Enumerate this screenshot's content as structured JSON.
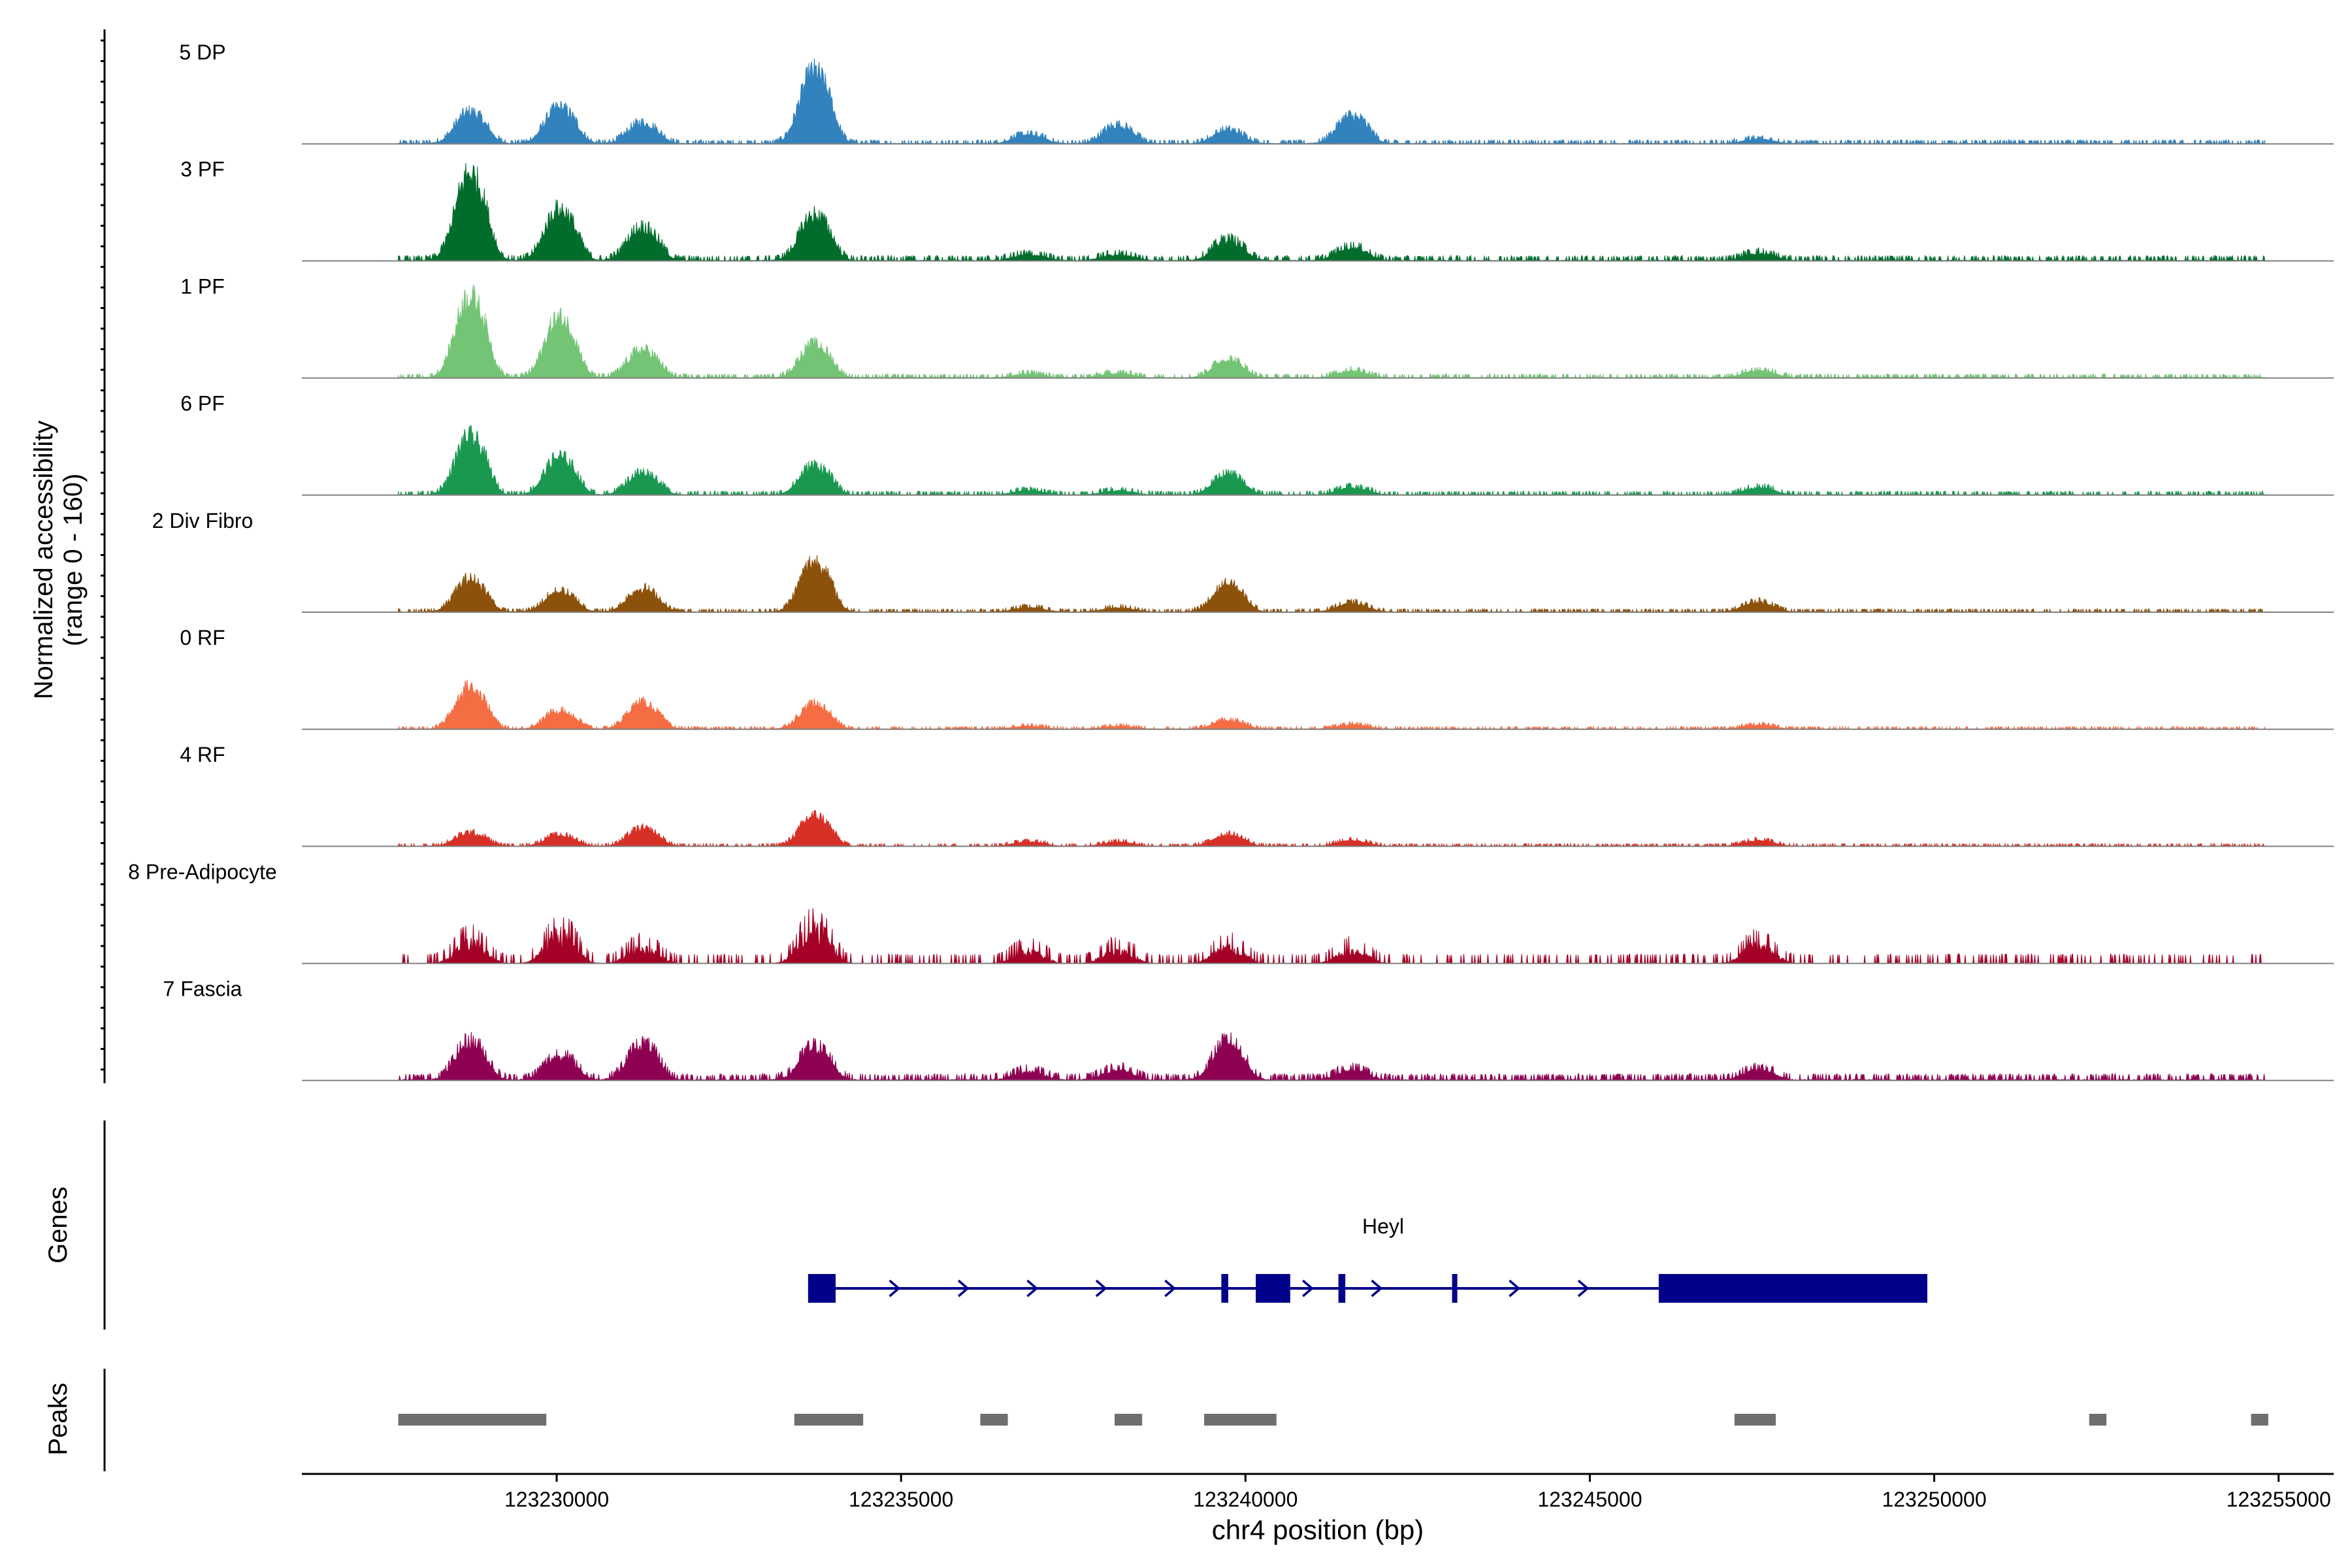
{
  "chart_data": {
    "type": "area",
    "title": "",
    "ylabel_line1": "Normalized accessibility",
    "ylabel_line2": "(range 0 - 160)",
    "ylim": [
      0,
      160
    ],
    "xlabel": "chr4 position (bp)",
    "xlim": [
      123226300,
      123255800
    ],
    "x_ticks": [
      123230000,
      123235000,
      123240000,
      123245000,
      123250000,
      123255000
    ],
    "x_tick_labels": [
      "123230000",
      "123235000",
      "123240000",
      "123245000",
      "123250000",
      "123255000"
    ],
    "signal_start": 123227700,
    "signal_end": 123254800,
    "peak_positions": [
      123228700,
      123230000,
      123231200,
      123233700,
      123236800,
      123238100,
      123239700,
      123241500,
      123247400
    ],
    "tracks": [
      {
        "name": "5 DP",
        "color": "#3182bd",
        "peaks": [
          43,
          49,
          28,
          100,
          12,
          25,
          18,
          38,
          6
        ],
        "noise": 6,
        "jagged": false
      },
      {
        "name": "3 PF",
        "color": "#006d2c",
        "peaks": [
          120,
          70,
          45,
          62,
          8,
          8,
          28,
          18,
          10
        ],
        "noise": 8,
        "jagged": false
      },
      {
        "name": "1 PF",
        "color": "#74c476",
        "peaks": [
          112,
          82,
          38,
          45,
          5,
          6,
          25,
          10,
          10
        ],
        "noise": 6,
        "jagged": false
      },
      {
        "name": "6 PF",
        "color": "#1a9850",
        "peaks": [
          80,
          52,
          30,
          40,
          6,
          6,
          28,
          10,
          10
        ],
        "noise": 6,
        "jagged": false
      },
      {
        "name": "2 Div Fibro",
        "color": "#8c510a",
        "peaks": [
          45,
          28,
          32,
          70,
          6,
          6,
          38,
          12,
          14
        ],
        "noise": 5,
        "jagged": false
      },
      {
        "name": "0 RF",
        "color": "#f46d43",
        "peaks": [
          58,
          25,
          36,
          34,
          4,
          4,
          12,
          6,
          6
        ],
        "noise": 4,
        "jagged": false
      },
      {
        "name": "4 RF",
        "color": "#d73027",
        "peaks": [
          18,
          15,
          24,
          42,
          6,
          6,
          16,
          8,
          8
        ],
        "noise": 4,
        "jagged": false
      },
      {
        "name": "8 Pre-Adipocyte",
        "color": "#a50026",
        "peaks": [
          30,
          42,
          22,
          52,
          18,
          18,
          22,
          18,
          26
        ],
        "noise": 14,
        "jagged": true
      },
      {
        "name": "7 Fascia",
        "color": "#8e0152",
        "peaks": [
          52,
          33,
          48,
          45,
          12,
          14,
          52,
          14,
          14
        ],
        "noise": 10,
        "jagged": false
      }
    ],
    "genes_label": "Genes",
    "gene": {
      "name": "Heyl",
      "color": "#00008b",
      "start": 123233650,
      "end": 123249900,
      "exons": [
        [
          123233650,
          123234050
        ],
        [
          123239650,
          123239750
        ],
        [
          123240150,
          123240650
        ],
        [
          123241350,
          123241450
        ],
        [
          123243000,
          123243050
        ],
        [
          123246000,
          123249900
        ]
      ]
    },
    "peaks_label": "Peaks",
    "peak_regions": [
      [
        123227700,
        123229850
      ],
      [
        123233450,
        123234450
      ],
      [
        123236150,
        123236550
      ],
      [
        123238100,
        123238500
      ],
      [
        123239400,
        123240450
      ],
      [
        123247100,
        123247700
      ],
      [
        123252250,
        123252500
      ],
      [
        123254600,
        123254850
      ]
    ]
  }
}
